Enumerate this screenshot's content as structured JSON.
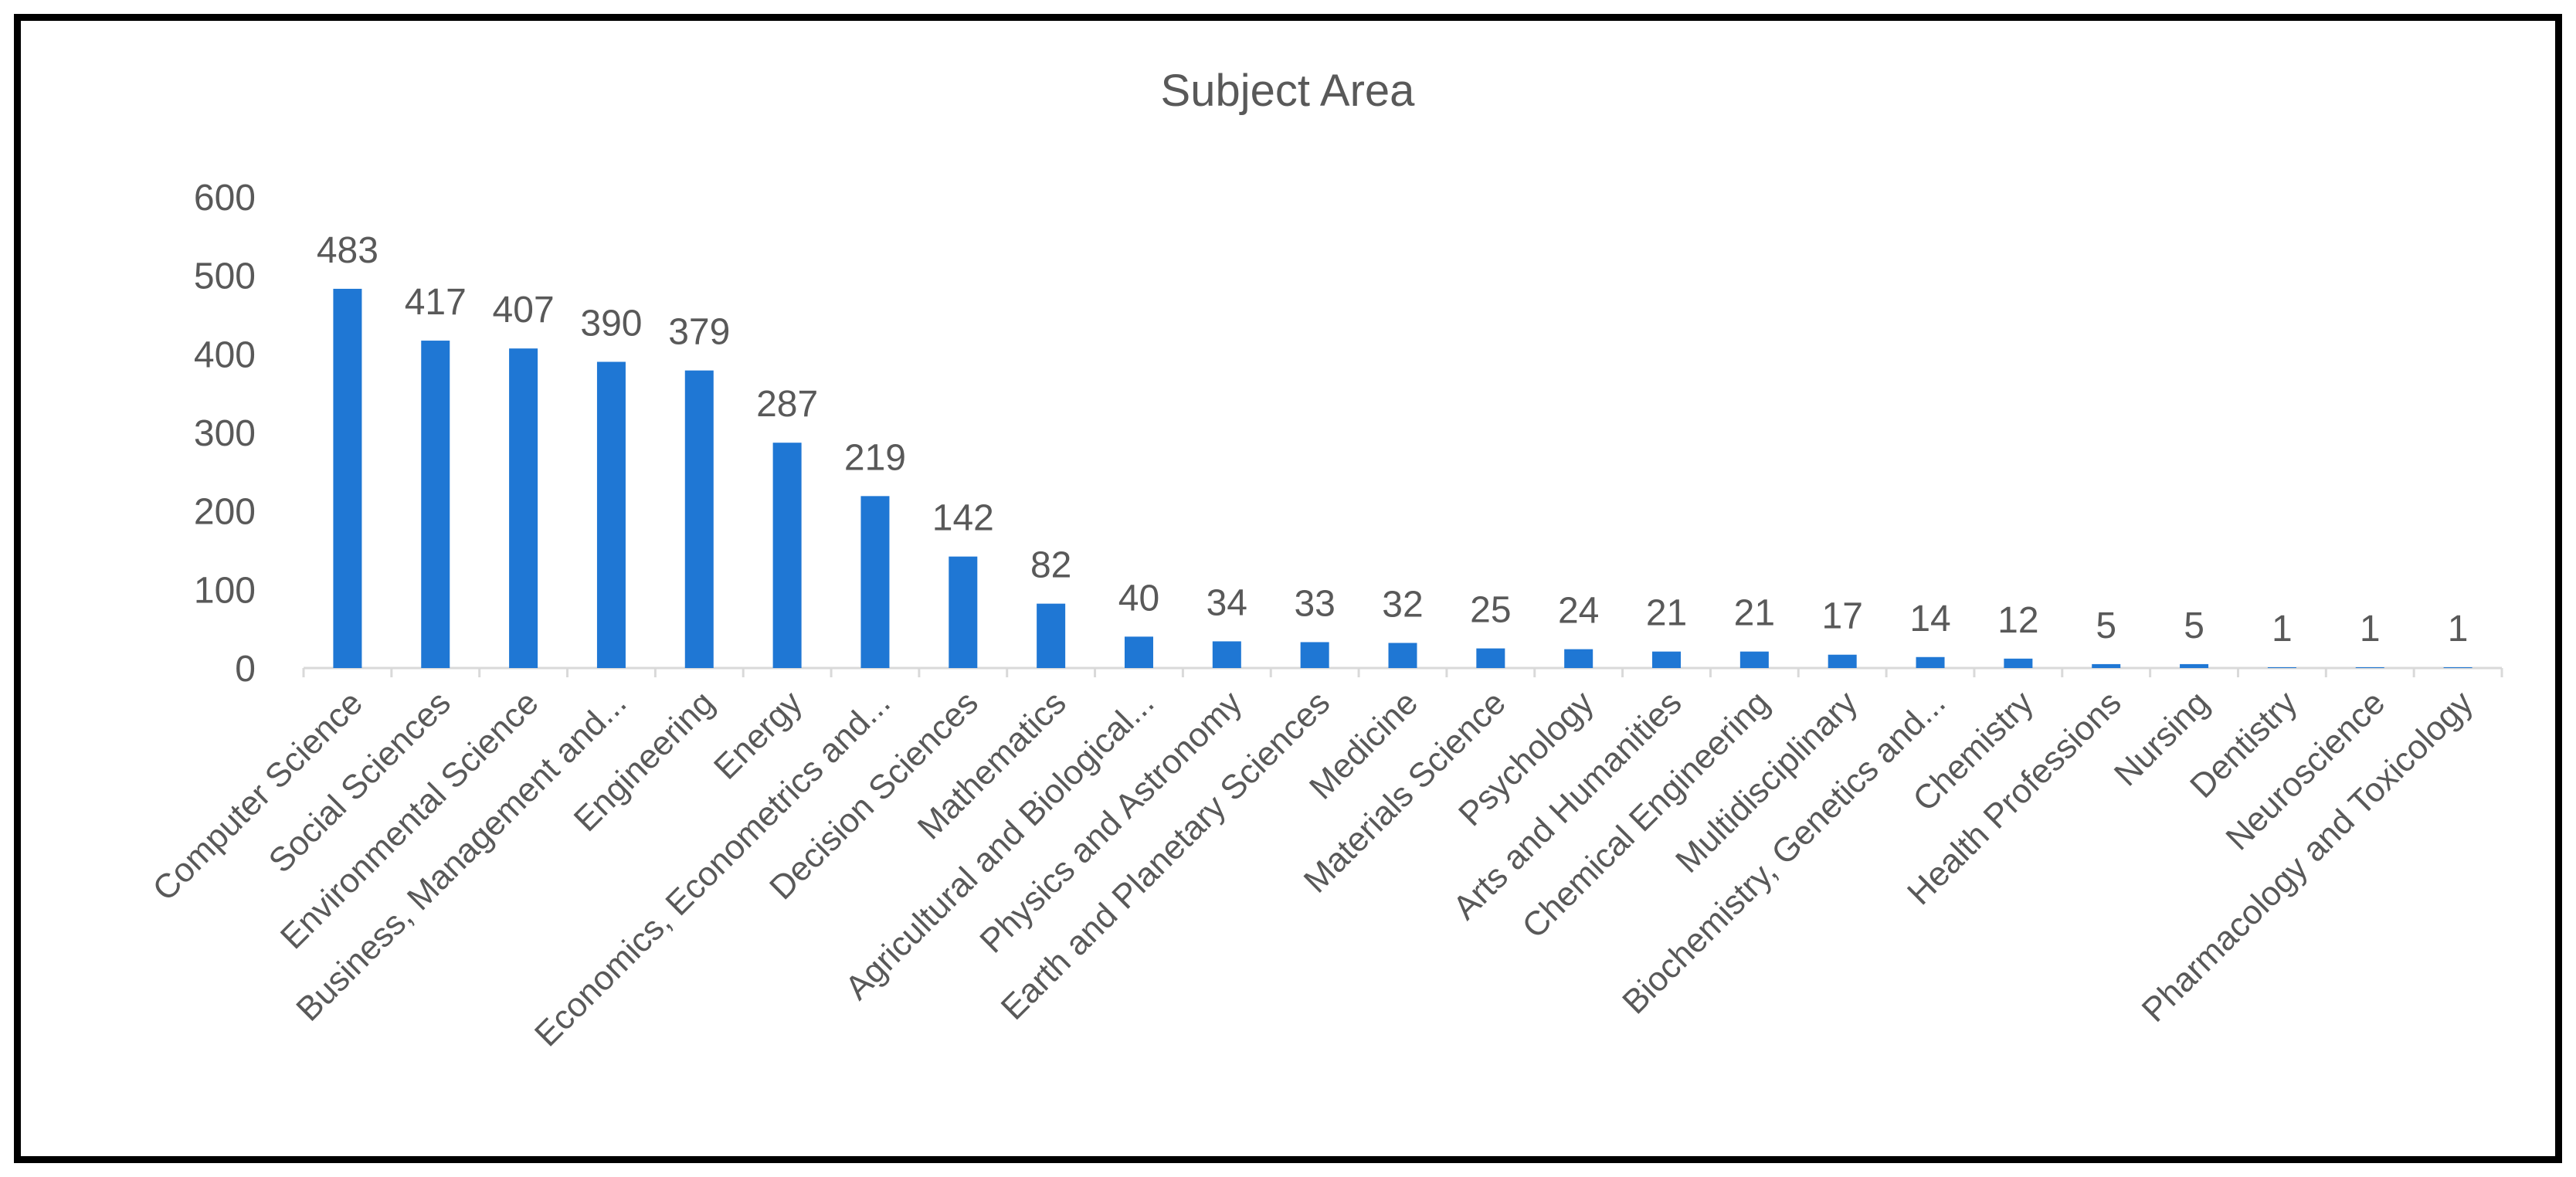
{
  "chart_data": {
    "type": "bar",
    "title": "Subject Area",
    "xlabel": "",
    "ylabel": "",
    "ylim": [
      0,
      600
    ],
    "yticks": [
      0,
      100,
      200,
      300,
      400,
      500,
      600
    ],
    "grid": false,
    "legend": "none",
    "bar_color": "#1F77D4",
    "categories": [
      "Computer Science",
      "Social Sciences",
      "Environmental Science",
      "Business, Management and...",
      "Engineering",
      "Energy",
      "Economics, Econometrics and...",
      "Decision Sciences",
      "Mathematics",
      "Agricultural and Biological...",
      "Physics and Astronomy",
      "Earth and Planetary Sciences",
      "Medicine",
      "Materials Science",
      "Psychology",
      "Arts and Humanities",
      "Chemical Engineering",
      "Multidisciplinary",
      "Biochemistry, Genetics and...",
      "Chemistry",
      "Health Professions",
      "Nursing",
      "Dentistry",
      "Neuroscience",
      "Pharmacology and Toxicology"
    ],
    "values": [
      483,
      417,
      407,
      390,
      379,
      287,
      219,
      142,
      82,
      40,
      34,
      33,
      32,
      25,
      24,
      21,
      21,
      17,
      14,
      12,
      5,
      5,
      1,
      1,
      1
    ]
  }
}
